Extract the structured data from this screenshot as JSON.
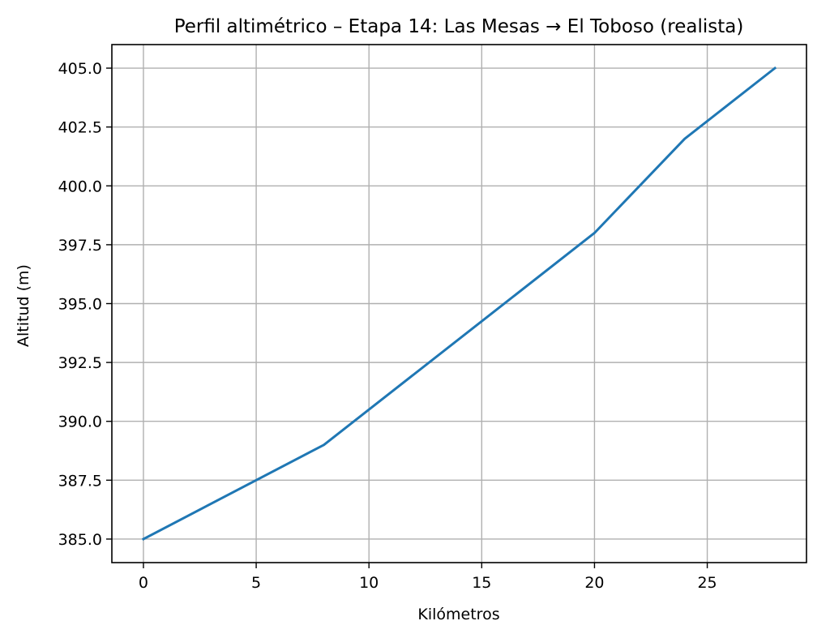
{
  "chart_data": {
    "type": "line",
    "title": "Perfil altimétrico – Etapa 14: Las Mesas → El Toboso (realista)",
    "xlabel": "Kilómetros",
    "ylabel": "Altitud (m)",
    "xlim": [
      -1.4,
      29.4
    ],
    "ylim": [
      384.0,
      406.0
    ],
    "x_ticks": [
      0,
      5,
      10,
      15,
      20,
      25
    ],
    "x_tick_labels": [
      "0",
      "5",
      "10",
      "15",
      "20",
      "25"
    ],
    "y_ticks": [
      385.0,
      387.5,
      390.0,
      392.5,
      395.0,
      397.5,
      400.0,
      402.5,
      405.0
    ],
    "y_tick_labels": [
      "385.0",
      "387.5",
      "390.0",
      "392.5",
      "395.0",
      "397.5",
      "400.0",
      "402.5",
      "405.0"
    ],
    "grid": true,
    "series": [
      {
        "color": "#1f77b4",
        "x": [
          0,
          8,
          20,
          24,
          28
        ],
        "y": [
          385.0,
          389.0,
          398.0,
          402.0,
          405.0
        ]
      }
    ]
  }
}
